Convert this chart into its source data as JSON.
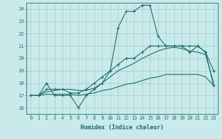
{
  "title": "",
  "xlabel": "Humidex (Indice chaleur)",
  "ylabel": "",
  "bg_color": "#c8eaea",
  "grid_color": "#a8c8c8",
  "line_color": "#1a6b6b",
  "xlim": [
    -0.5,
    23.5
  ],
  "ylim": [
    15.5,
    24.5
  ],
  "yticks": [
    16,
    17,
    18,
    19,
    20,
    21,
    22,
    23,
    24
  ],
  "xticks": [
    0,
    1,
    2,
    3,
    4,
    5,
    6,
    7,
    8,
    9,
    10,
    11,
    12,
    13,
    14,
    15,
    16,
    17,
    18,
    19,
    20,
    21,
    22,
    23
  ],
  "series": [
    {
      "x": [
        0,
        1,
        2,
        3,
        4,
        5,
        6,
        7,
        8,
        9,
        10,
        11,
        12,
        13,
        14,
        15,
        16,
        17,
        18,
        19,
        20,
        21,
        22,
        23
      ],
      "y": [
        17,
        17,
        18,
        17,
        17,
        17,
        16,
        17,
        17.5,
        18,
        19,
        22.5,
        23.8,
        23.8,
        24.3,
        24.3,
        21.8,
        21,
        21,
        21,
        20.5,
        21,
        20.5,
        19.0
      ],
      "marker": "+",
      "markersize": 3.0,
      "linewidth": 0.8
    },
    {
      "x": [
        0,
        1,
        2,
        3,
        4,
        5,
        6,
        7,
        8,
        9,
        10,
        11,
        12,
        13,
        14,
        15,
        16,
        17,
        18,
        19,
        20,
        21,
        22,
        23
      ],
      "y": [
        17,
        17,
        17.5,
        17.5,
        17.5,
        17.2,
        17.2,
        17.5,
        18,
        18.5,
        19,
        19.5,
        20,
        20,
        20.5,
        21,
        21,
        21,
        21,
        21,
        21,
        21,
        20.5,
        17.8
      ],
      "marker": "+",
      "markersize": 3.0,
      "linewidth": 0.8
    },
    {
      "x": [
        0,
        1,
        2,
        3,
        4,
        5,
        6,
        7,
        8,
        9,
        10,
        11,
        12,
        13,
        14,
        15,
        16,
        17,
        18,
        19,
        20,
        21,
        22,
        23
      ],
      "y": [
        17,
        17,
        17.3,
        17.4,
        17.5,
        17.5,
        17.4,
        17.4,
        17.6,
        18.0,
        18.5,
        19.0,
        19.3,
        19.6,
        20.0,
        20.3,
        20.6,
        20.8,
        20.9,
        20.8,
        20.6,
        20.5,
        20.3,
        18.0
      ],
      "marker": null,
      "markersize": 0,
      "linewidth": 0.8
    },
    {
      "x": [
        0,
        1,
        2,
        3,
        4,
        5,
        6,
        7,
        8,
        9,
        10,
        11,
        12,
        13,
        14,
        15,
        16,
        17,
        18,
        19,
        20,
        21,
        22,
        23
      ],
      "y": [
        17,
        17,
        17.1,
        17.1,
        17.1,
        17.1,
        17.0,
        17.1,
        17.2,
        17.4,
        17.5,
        17.7,
        17.9,
        18.0,
        18.2,
        18.4,
        18.5,
        18.7,
        18.7,
        18.7,
        18.7,
        18.7,
        18.5,
        17.8
      ],
      "marker": null,
      "markersize": 0,
      "linewidth": 0.8
    }
  ]
}
